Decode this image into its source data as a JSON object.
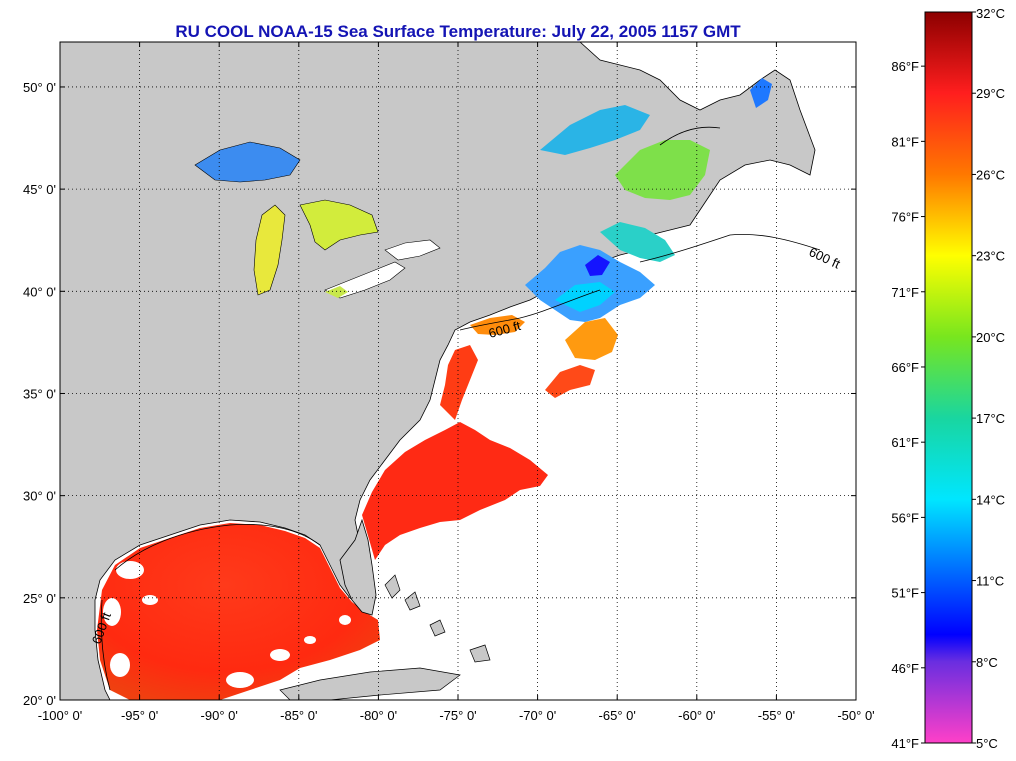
{
  "title": "RU COOL  NOAA-15  Sea Surface Temperature:  July 22, 2005 1157 GMT",
  "map": {
    "lon_min": -100,
    "lon_max": -50,
    "lat_min": 20,
    "lat_max": 52.2,
    "land_color": "#c8c8c8",
    "ocean_color": "#ffffff",
    "grid": "dotted",
    "lon_ticks": [
      {
        "v": -100,
        "label": "-100° 0'"
      },
      {
        "v": -95,
        "label": "-95° 0'"
      },
      {
        "v": -90,
        "label": "-90° 0'"
      },
      {
        "v": -85,
        "label": "-85° 0'"
      },
      {
        "v": -80,
        "label": "-80° 0'"
      },
      {
        "v": -75,
        "label": "-75° 0'"
      },
      {
        "v": -70,
        "label": "-70° 0'"
      },
      {
        "v": -65,
        "label": "-65° 0'"
      },
      {
        "v": -60,
        "label": "-60° 0'"
      },
      {
        "v": -55,
        "label": "-55° 0'"
      },
      {
        "v": -50,
        "label": "-50° 0'"
      }
    ],
    "lat_ticks": [
      {
        "v": 20,
        "label": "20° 0'"
      },
      {
        "v": 25,
        "label": "25° 0'"
      },
      {
        "v": 30,
        "label": "30° 0'"
      },
      {
        "v": 35,
        "label": "35° 0'"
      },
      {
        "v": 40,
        "label": "40° 0'"
      },
      {
        "v": 45,
        "label": "45° 0'"
      },
      {
        "v": 50,
        "label": "50° 0'"
      }
    ],
    "contour_label": "600 ft"
  },
  "colorbar": {
    "celsius_min": 5,
    "celsius_max": 32,
    "celsius_labels": [
      "32°C",
      "29°C",
      "26°C",
      "23°C",
      "20°C",
      "17°C",
      "14°C",
      "11°C",
      "8°C",
      "5°C"
    ],
    "celsius_values": [
      32,
      29,
      26,
      23,
      20,
      17,
      14,
      11,
      8,
      5
    ],
    "fahrenheit_labels": [
      "86°F",
      "81°F",
      "76°F",
      "71°F",
      "66°F",
      "61°F",
      "56°F",
      "51°F",
      "46°F",
      "41°F"
    ],
    "fahrenheit_values": [
      86,
      81,
      76,
      71,
      66,
      61,
      56,
      51,
      46,
      41
    ],
    "color_stops": [
      {
        "c": 5,
        "color": "#ff40c8"
      },
      {
        "c": 8,
        "color": "#6a2ee0"
      },
      {
        "c": 9,
        "color": "#0000ff"
      },
      {
        "c": 14,
        "color": "#00e6ff"
      },
      {
        "c": 17,
        "color": "#19d6a0"
      },
      {
        "c": 20,
        "color": "#78e61e"
      },
      {
        "c": 23,
        "color": "#ffff00"
      },
      {
        "c": 26,
        "color": "#ff7800"
      },
      {
        "c": 29,
        "color": "#ff1e1e"
      },
      {
        "c": 32,
        "color": "#8c0000"
      }
    ]
  }
}
